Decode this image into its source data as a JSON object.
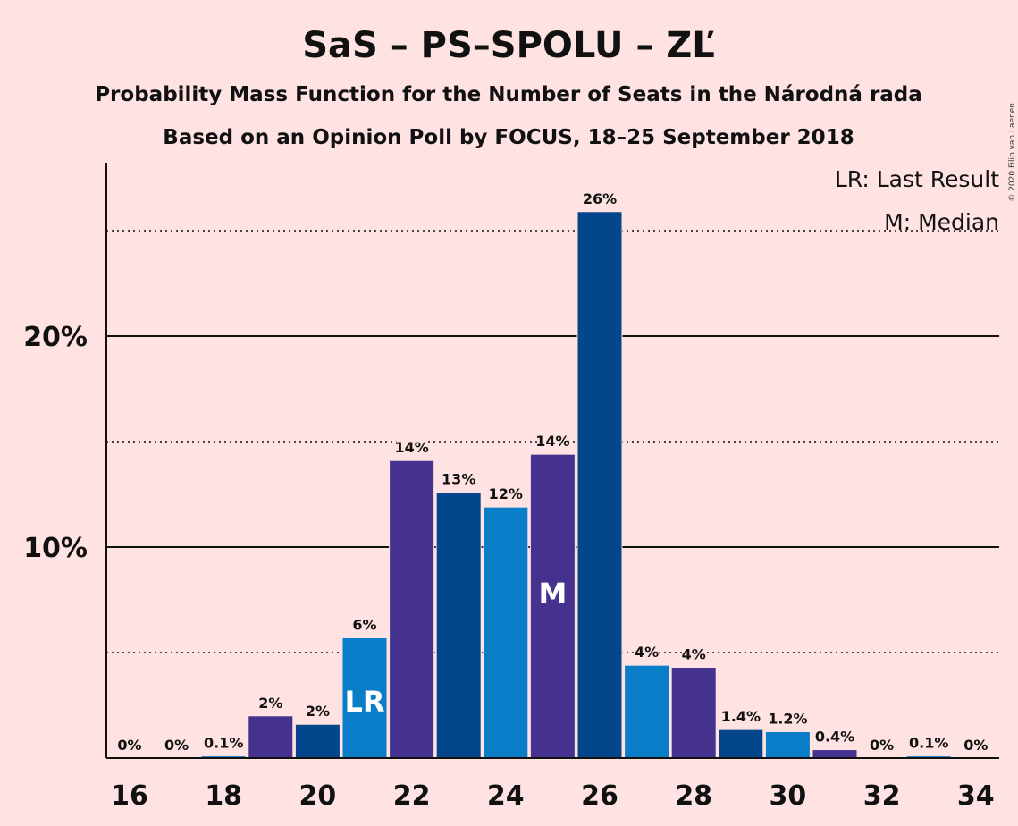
{
  "copyright": "© 2020 Filip van Laenen",
  "chart_data": {
    "type": "bar",
    "title": "SaS – PS–SPOLU – ZĽ",
    "subtitle1": "Probability Mass Function for the Number of Seats in the Národná rada",
    "subtitle2": "Based on an Opinion Poll by FOCUS, 18–25 September 2018",
    "legend": [
      "LR: Last Result",
      "M: Median"
    ],
    "legend_position": "top-right",
    "x": [
      16,
      17,
      18,
      19,
      20,
      21,
      22,
      23,
      24,
      25,
      26,
      27,
      28,
      29,
      30,
      31,
      32,
      33,
      34
    ],
    "values": [
      0,
      0,
      0.1,
      2.0,
      1.6,
      5.7,
      14.1,
      12.6,
      11.9,
      14.4,
      25.9,
      4.4,
      4.3,
      1.35,
      1.25,
      0.4,
      0,
      0.1,
      0
    ],
    "data_labels": [
      "0%",
      "0%",
      "0.1%",
      "2%",
      "2%",
      "6%",
      "14%",
      "13%",
      "12%",
      "14%",
      "26%",
      "4%",
      "4%",
      "1.4%",
      "1.2%",
      "0.4%",
      "0%",
      "0.1%",
      "0%"
    ],
    "bar_colors": [
      "#45328E",
      "#03468B",
      "#0A7DC8",
      "#45328E",
      "#03468B",
      "#0A7DC8",
      "#45328E",
      "#03468B",
      "#0A7DC8",
      "#45328E",
      "#03468B",
      "#0A7DC8",
      "#45328E",
      "#03468B",
      "#0A7DC8",
      "#45328E",
      "#03468B",
      "#0A7DC8",
      "#45328E"
    ],
    "x_ticks": [
      "16",
      "18",
      "20",
      "22",
      "24",
      "26",
      "28",
      "30",
      "32",
      "34"
    ],
    "x_tick_values": [
      16,
      18,
      20,
      22,
      24,
      26,
      28,
      30,
      32,
      34
    ],
    "y_ticks": [
      "10%",
      "20%"
    ],
    "y_tick_values": [
      10,
      20
    ],
    "y_dotted_gridlines": [
      5,
      15,
      25
    ],
    "ylim": [
      0,
      28
    ],
    "markers": [
      {
        "x": 21,
        "text": "LR"
      },
      {
        "x": 25,
        "text": "M"
      }
    ]
  }
}
